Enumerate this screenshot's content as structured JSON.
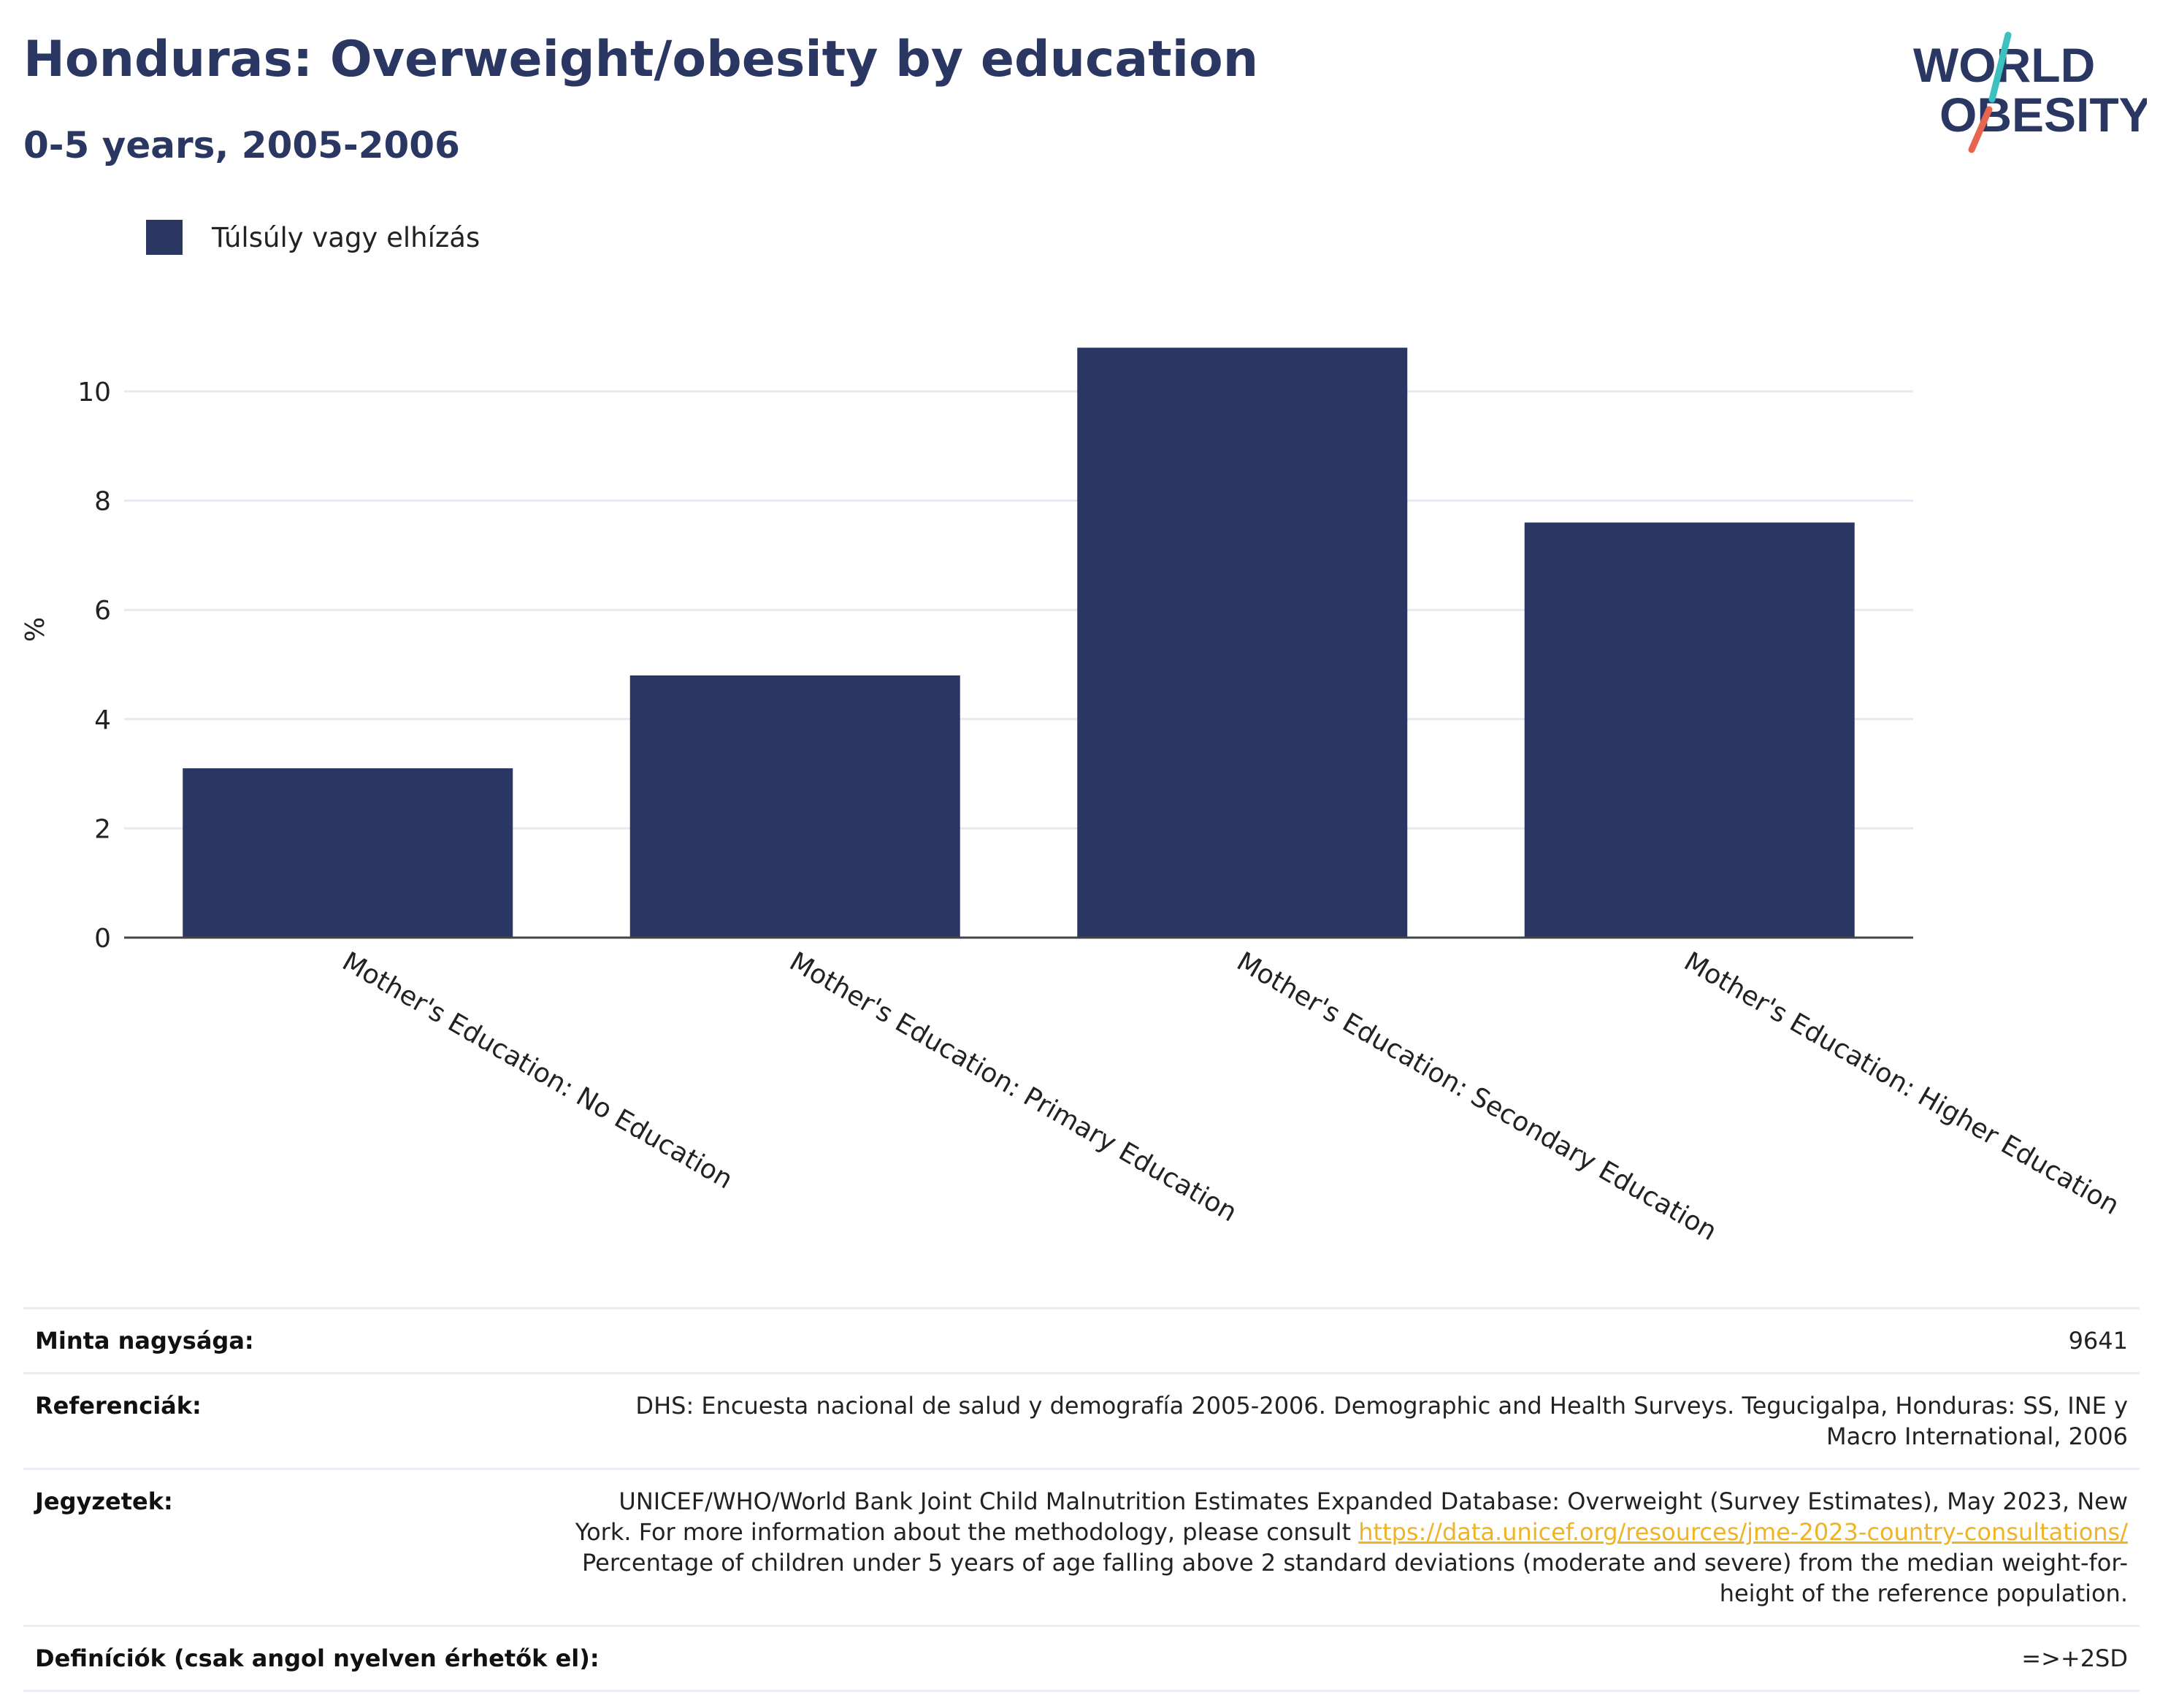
{
  "header": {
    "title": "Honduras: Overweight/obesity by education",
    "subtitle": "0-5 years, 2005-2006"
  },
  "logo": {
    "line1": "WORLD",
    "line2": "OBESITY"
  },
  "colors": {
    "bar": "#2b3763",
    "title": "#2b3763",
    "grid": "#e6e9f0",
    "link": "#f0b323",
    "logo_teal": "#3cc0c0",
    "logo_red": "#e8664f"
  },
  "chart_data": {
    "type": "bar",
    "categories": [
      "Mother's Education: No Education",
      "Mother's Education: Primary Education",
      "Mother's Education: Secondary Education",
      "Mother's Education: Higher Education"
    ],
    "series": [
      {
        "name": "Túlsúly vagy elhízás",
        "values": [
          3.1,
          4.8,
          10.8,
          7.6
        ]
      }
    ],
    "ylabel": "%",
    "xlabel": "",
    "ylim": [
      0,
      11
    ],
    "yticks": [
      0,
      2,
      4,
      6,
      8,
      10
    ],
    "grid": true,
    "legend_position": "top-left"
  },
  "info": {
    "sample_label": "Minta nagysága:",
    "sample_value": "9641",
    "references_label": "Referenciák:",
    "references_value": "DHS: Encuesta nacional de salud y demografía 2005-2006. Demographic and Health Surveys. Tegucigalpa, Honduras: SS, INE y Macro International, 2006",
    "notes_label": "Jegyzetek:",
    "notes_text_1": "UNICEF/WHO/World Bank Joint Child Malnutrition Estimates Expanded Database: Overweight (Survey Estimates), May 2023, New York. For more information about the methodology, please consult",
    "notes_link": "https://data.unicef.org/resources/jme-2023-country-consultations/",
    "notes_text_2": "Percentage of children under 5 years of age falling above 2 standard deviations (moderate and severe) from the median weight-for-height of the reference population.",
    "definitions_label": "Definíciók (csak angol nyelven érhetők el):",
    "definitions_value": "=>+2SD"
  }
}
